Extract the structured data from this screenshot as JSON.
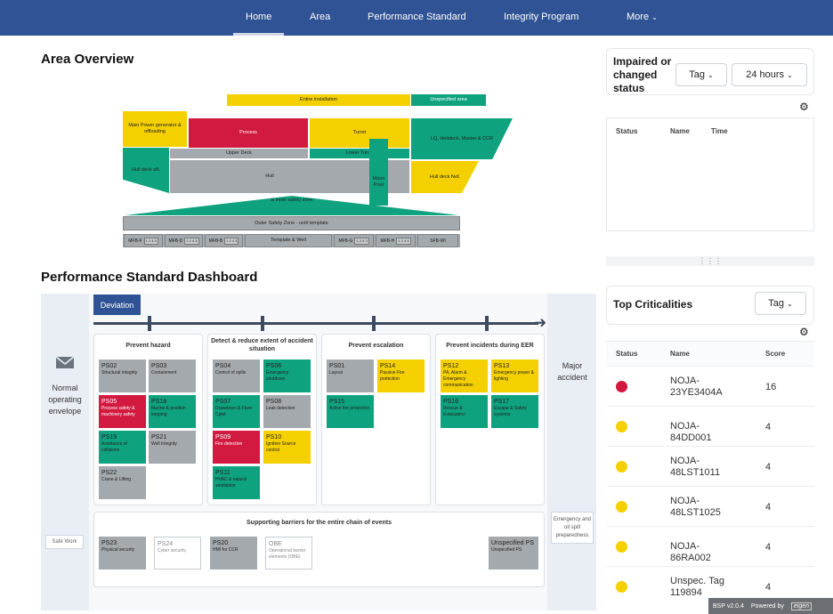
{
  "nav": {
    "items": [
      "Home",
      "Area",
      "Performance Standard",
      "Integrity Program",
      "More"
    ]
  },
  "area": {
    "title": "Area Overview",
    "labels": {
      "entire": "Entire installation",
      "unspecified": "Unspecified area",
      "mainpower": "Main Power generator & offloading",
      "process": "Process",
      "turret": "Turret",
      "lq": "LQ, Helideck, Muster & CCR",
      "upperdeck": "Upper Deck",
      "lowerturret": "Lower Turret",
      "hulldeckaft": "Hull deck aft.",
      "hull": "Hull",
      "moonpool": "Moon Pool",
      "hulldeckfwd": "Hull deck fwd.",
      "inner": "& inner safety zone",
      "outer": "Outer Safety Zone - until template",
      "template": "Template & Well"
    },
    "mfb": [
      {
        "label": "MFB-F",
        "f": "1 2 4 3"
      },
      {
        "label": "MFB-D",
        "f": "1 2 4 3"
      },
      {
        "label": "MFB-B",
        "f": "1 2 4 3"
      },
      {
        "label": "MFB-G",
        "f": "1 2 4 3"
      },
      {
        "label": "MFB-H",
        "f": "1 2 4 3"
      },
      {
        "label": "SFB-WI",
        "f": ""
      }
    ]
  },
  "psd": {
    "title": "Performance Standard Dashboard",
    "deviation": "Deviation",
    "left": "Normal operating envelope",
    "right": "Major accident",
    "safework": "Safe Work",
    "emergency": "Emergency and oil spill preparedness",
    "columns": [
      "Prevent hazard",
      "Detect & reduce extent of accident situation",
      "Prevent escalation",
      "Prevent incidents during EER"
    ],
    "supporting": "Supporting barriers for the entire chain of events",
    "ps": [
      {
        "code": "PS02",
        "name": "Structural integrity",
        "c": "gr"
      },
      {
        "code": "PS03",
        "name": "Containment",
        "c": "gr"
      },
      {
        "code": "PS05",
        "name": "Process safety & machinery safety",
        "c": "r"
      },
      {
        "code": "PS18",
        "name": "Marine & position keeping",
        "c": "g"
      },
      {
        "code": "PS19",
        "name": "Avoidance of collisions",
        "c": "g"
      },
      {
        "code": "PS21",
        "name": "Well Integrity",
        "c": "gr"
      },
      {
        "code": "PS22",
        "name": "Crane & Lifting",
        "c": "gr"
      },
      {
        "code": "PS04",
        "name": "Control of spills",
        "c": "gr"
      },
      {
        "code": "PS06",
        "name": "Emergency shutdown",
        "c": "g"
      },
      {
        "code": "PS07",
        "name": "Drawdown & Flare Cplet",
        "c": "g"
      },
      {
        "code": "PS08",
        "name": "Leak detection",
        "c": "gr"
      },
      {
        "code": "PS09",
        "name": "Fire detection",
        "c": "r"
      },
      {
        "code": "PS10",
        "name": "Ignition Source control",
        "c": "y"
      },
      {
        "code": "PS11",
        "name": "HVAC & natural ventilation",
        "c": "g"
      },
      {
        "code": "PS01",
        "name": "Layout",
        "c": "gr"
      },
      {
        "code": "PS14",
        "name": "Passive Fire protection",
        "c": "y"
      },
      {
        "code": "PS15",
        "name": "Active fire protection",
        "c": "g"
      },
      {
        "code": "PS12",
        "name": "PA, Alarm & Emergency communication",
        "c": "y"
      },
      {
        "code": "PS13",
        "name": "Emergency power & lighting",
        "c": "y"
      },
      {
        "code": "PS16",
        "name": "Rescue & Evacuation",
        "c": "g"
      },
      {
        "code": "PS17",
        "name": "Escape & Safety systems",
        "c": "g"
      }
    ],
    "support": [
      {
        "code": "PS23",
        "name": "Physical security",
        "c": "gr"
      },
      {
        "code": "PS24",
        "name": "Cyber security",
        "c": "w"
      },
      {
        "code": "PS20",
        "name": "HMI for CCR",
        "c": "gr"
      },
      {
        "code": "OBE",
        "name": "Operational barrier elements (OBE)",
        "c": "w"
      },
      {
        "code": "Unspecified PS",
        "name": "Unspecified PS",
        "c": "gr"
      }
    ]
  },
  "impaired": {
    "title": "Impaired or changed status",
    "tag": "Tag",
    "time": "24 hours",
    "cols": [
      "Status",
      "Name",
      "Time"
    ]
  },
  "top": {
    "title": "Top Criticalities",
    "tag": "Tag",
    "cols": [
      "Status",
      "Name",
      "Score"
    ],
    "rows": [
      {
        "name": "NOJA-23YE3404A",
        "score": "16",
        "color": "#d2193f"
      },
      {
        "name": "NOJA-84DD001",
        "score": "4",
        "color": "#f5d000"
      },
      {
        "name": "NOJA-48LST1011",
        "score": "4",
        "color": "#f5d000"
      },
      {
        "name": "NOJA-48LST1025",
        "score": "4",
        "color": "#f5d000"
      },
      {
        "name": "NOJA-86RA002",
        "score": "4",
        "color": "#f5d000"
      },
      {
        "name": "Unspec. Tag 119894",
        "score": "4",
        "color": "#f5d000"
      }
    ]
  },
  "footer": {
    "version": "BSP v2.0.4",
    "powered": "Powered by",
    "brand": "eigen"
  }
}
